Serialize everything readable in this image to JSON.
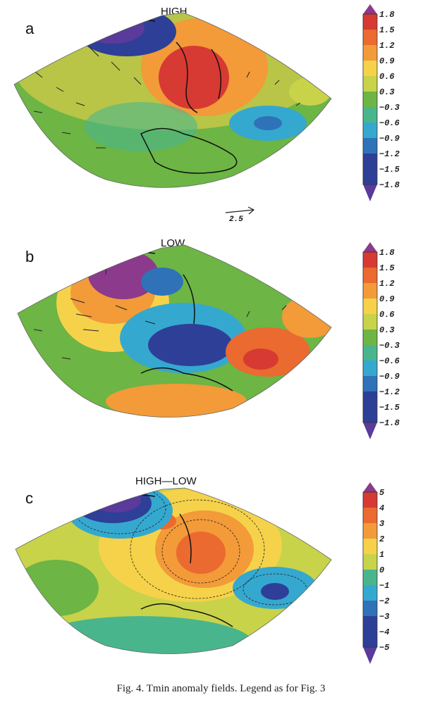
{
  "panels": [
    {
      "id": "a",
      "label": "a",
      "title": "HIGH",
      "legend": [
        "1.8",
        "1.5",
        "1.2",
        "0.9",
        "0.6",
        "0.3",
        "−0.3",
        "−0.6",
        "−0.9",
        "−1.2",
        "−1.5",
        "−1.8"
      ],
      "vector_key": "2.5"
    },
    {
      "id": "b",
      "label": "b",
      "title": "LOW",
      "legend": [
        "1.8",
        "1.5",
        "1.2",
        "0.9",
        "0.6",
        "0.3",
        "−0.3",
        "−0.6",
        "−0.9",
        "−1.2",
        "−1.5",
        "−1.8"
      ]
    },
    {
      "id": "c",
      "label": "c",
      "title": "HIGH—LOW",
      "legend": [
        "5",
        "4",
        "3",
        "2",
        "1",
        "0",
        "−1",
        "−2",
        "−3",
        "−4",
        "−5"
      ]
    }
  ],
  "colors": {
    "scale": [
      "#8b3a8c",
      "#d73a33",
      "#ea6a2f",
      "#f39a39",
      "#f5d24a",
      "#c8d34a",
      "#6db544",
      "#49b58d",
      "#35a8cf",
      "#2f72b8",
      "#2e3f98",
      "#5a3a9b"
    ]
  },
  "caption": "Fig. 4. Tmin anomaly fields. Legend as for Fig. 3"
}
